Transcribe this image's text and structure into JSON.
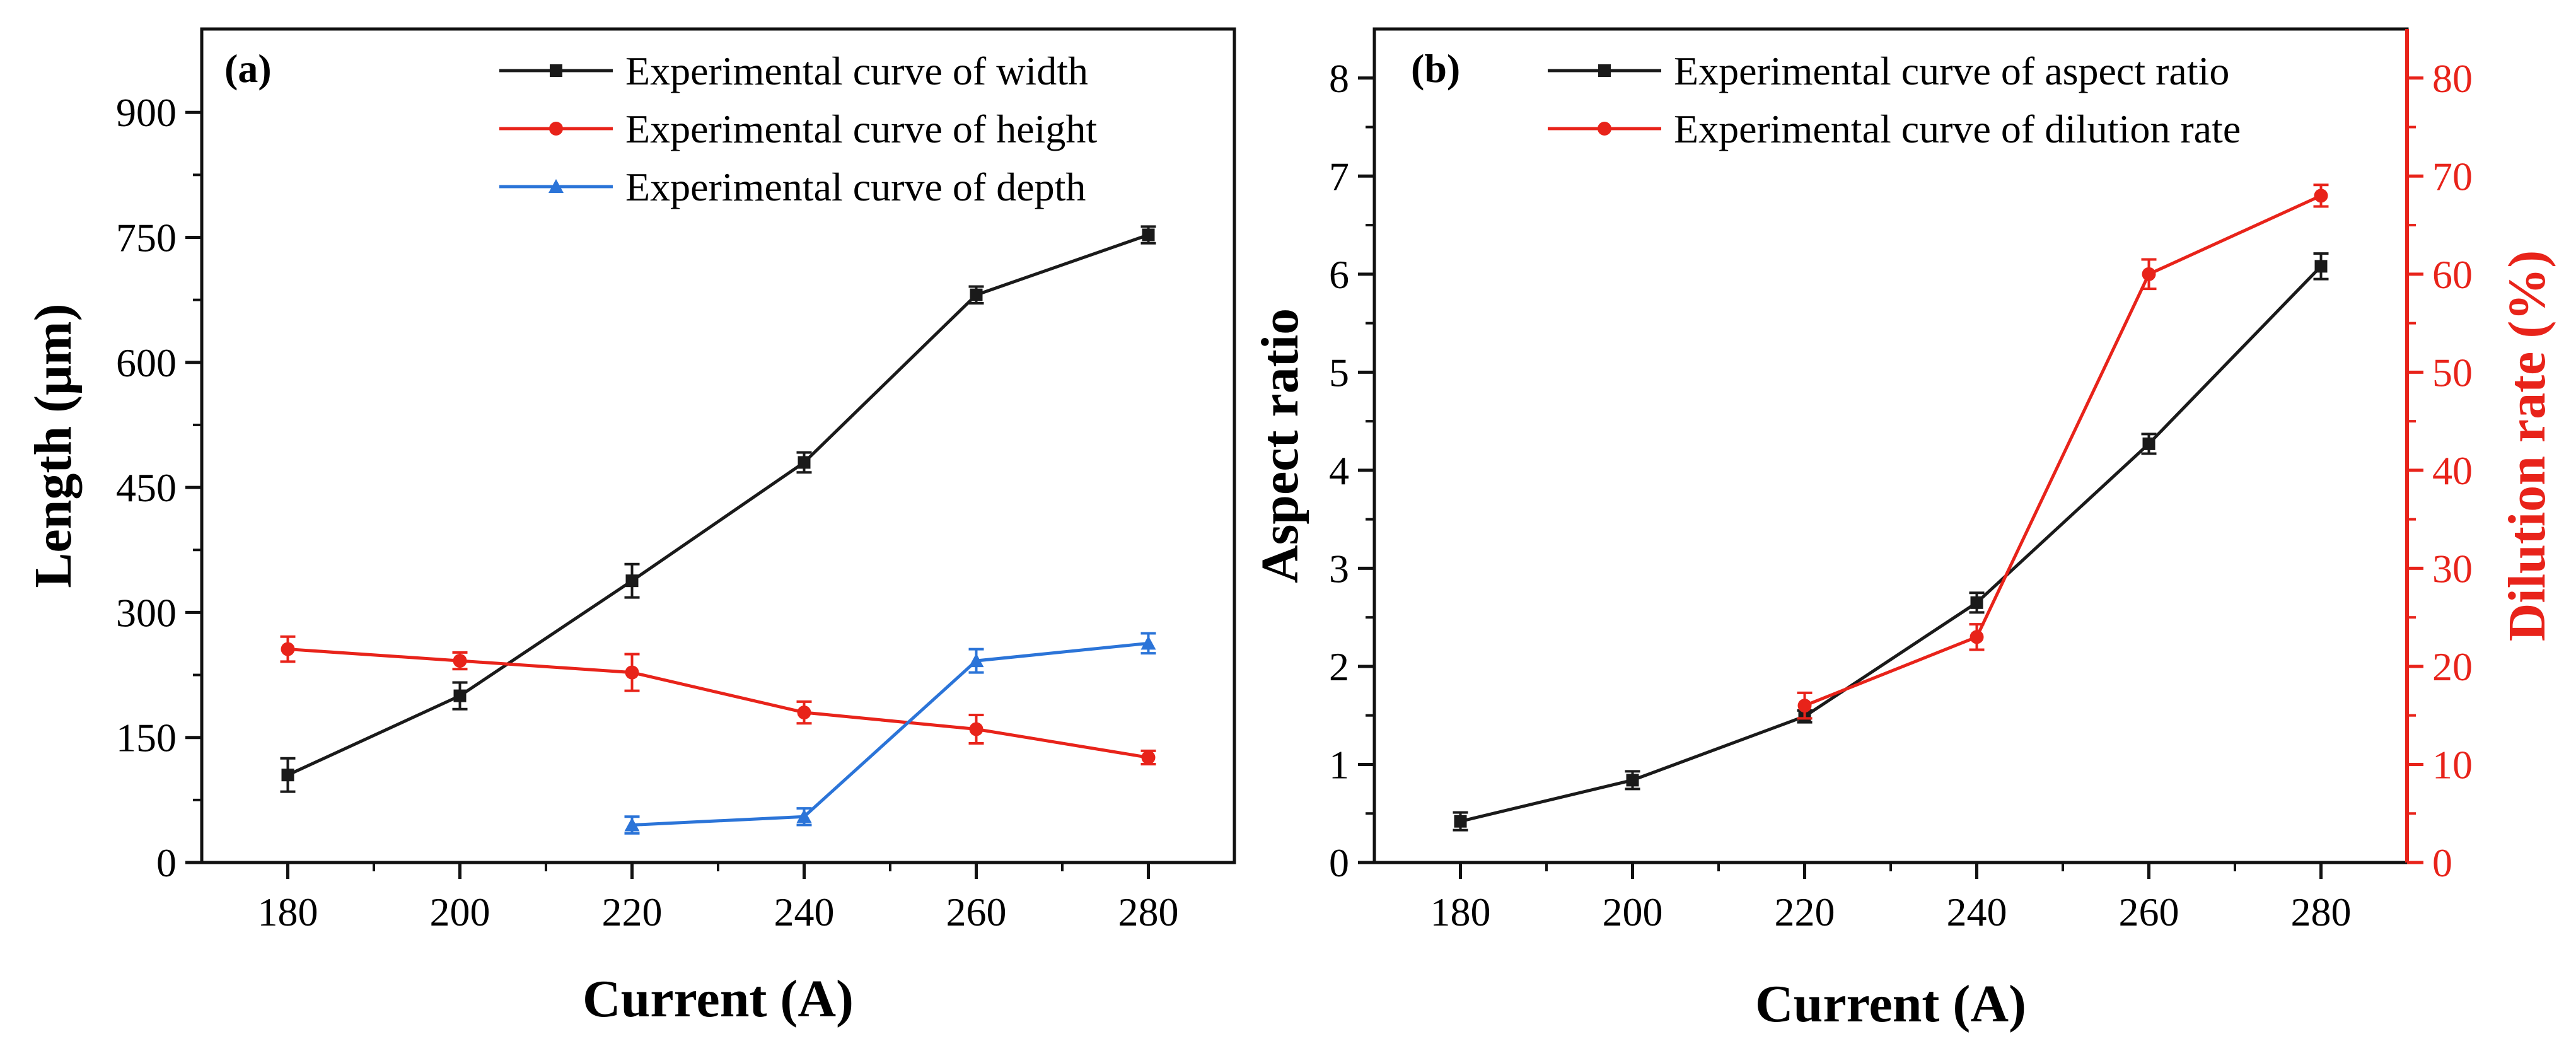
{
  "chart_data": [
    {
      "panel": "(a)",
      "type": "line",
      "title": "",
      "xlabel": "Current (A)",
      "ylabel": "Length (μm)",
      "xlim": [
        170,
        290
      ],
      "ylim": [
        0,
        1000
      ],
      "xticks": [
        180,
        200,
        220,
        240,
        260,
        280
      ],
      "yticks": [
        0,
        150,
        300,
        450,
        600,
        750,
        900
      ],
      "series": [
        {
          "name": "Experimental curve of width",
          "color": "#1a1a1a",
          "marker": "square",
          "x": [
            180,
            200,
            220,
            240,
            260,
            280
          ],
          "values": [
            105,
            200,
            338,
            480,
            681,
            753
          ],
          "errors": [
            20,
            16,
            20,
            12,
            10,
            10
          ]
        },
        {
          "name": "Experimental curve of height",
          "color": "#e8231a",
          "marker": "circle",
          "x": [
            180,
            200,
            220,
            240,
            260,
            280
          ],
          "values": [
            256,
            242,
            228,
            180,
            160,
            126
          ],
          "errors": [
            15,
            10,
            22,
            13,
            17,
            8
          ]
        },
        {
          "name": "Experimental curve of depth",
          "color": "#2b74d8",
          "marker": "triangle",
          "x": [
            220,
            240,
            260,
            280
          ],
          "values": [
            45,
            55,
            242,
            263
          ],
          "errors": [
            10,
            10,
            14,
            12
          ]
        }
      ]
    },
    {
      "panel": "(b)",
      "type": "line",
      "title": "",
      "xlabel": "Current (A)",
      "ylabel": "Aspect ratio",
      "ylabel_right": "Dilution rate (%)",
      "xlim": [
        170,
        290
      ],
      "ylim": [
        0,
        8.5
      ],
      "ylim_right": [
        0,
        85
      ],
      "xticks": [
        180,
        200,
        220,
        240,
        260,
        280
      ],
      "yticks": [
        0,
        1,
        2,
        3,
        4,
        5,
        6,
        7,
        8
      ],
      "yticks_right": [
        0,
        10,
        20,
        30,
        40,
        50,
        60,
        70,
        80
      ],
      "right_axis_color": "#e8231a",
      "series": [
        {
          "name": "Experimental curve of aspect ratio",
          "color": "#1a1a1a",
          "marker": "square",
          "axis": "left",
          "x": [
            180,
            200,
            220,
            240,
            260,
            280
          ],
          "values": [
            0.42,
            0.84,
            1.49,
            2.65,
            4.27,
            6.08
          ],
          "errors": [
            0.09,
            0.09,
            0.06,
            0.1,
            0.1,
            0.13
          ]
        },
        {
          "name": "Experimental curve of dilution rate",
          "color": "#e8231a",
          "marker": "circle",
          "axis": "right",
          "x": [
            220,
            240,
            260,
            280
          ],
          "values": [
            16,
            23,
            60,
            68
          ],
          "errors": [
            1.3,
            1.3,
            1.5,
            1.1
          ]
        }
      ]
    }
  ]
}
